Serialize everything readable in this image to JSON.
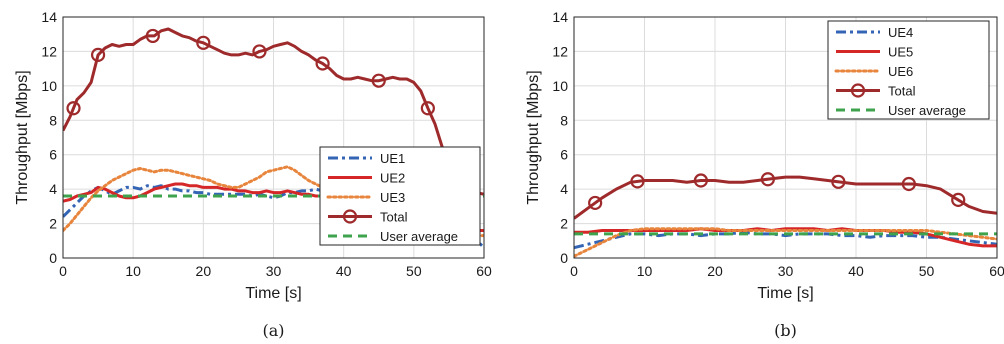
{
  "chart_data": [
    {
      "type": "line",
      "caption": "(a)",
      "xlabel": "Time [s]",
      "ylabel": "Throughput [Mbps]",
      "xlim": [
        0,
        60
      ],
      "ylim": [
        0,
        14
      ],
      "xticks": [
        0,
        10,
        20,
        30,
        40,
        50,
        60
      ],
      "yticks": [
        0,
        2,
        4,
        6,
        8,
        10,
        12,
        14
      ],
      "grid": true,
      "legend_position": "lower-right",
      "series": [
        {
          "name": "UE1",
          "color": "#3465b5",
          "style": "dashdot",
          "marker": "none",
          "x": [
            0,
            1,
            2,
            3,
            4,
            5,
            6,
            7,
            8,
            9,
            10,
            11,
            12,
            13,
            14,
            15,
            16,
            17,
            18,
            19,
            20,
            21,
            22,
            23,
            24,
            25,
            26,
            27,
            28,
            29,
            30,
            31,
            32,
            33,
            34,
            35,
            36,
            37,
            38,
            39,
            40,
            41,
            42,
            43,
            44,
            45,
            46,
            47,
            48,
            49,
            50,
            51,
            52,
            53,
            54,
            55,
            56,
            57,
            58,
            59,
            60
          ],
          "values": [
            2.4,
            2.8,
            3.2,
            3.6,
            3.9,
            4.1,
            3.9,
            3.7,
            3.9,
            4.1,
            4.1,
            4.0,
            4.2,
            4.1,
            4.2,
            4.0,
            4.0,
            3.9,
            3.9,
            3.8,
            3.8,
            3.7,
            3.7,
            3.7,
            3.7,
            3.7,
            3.7,
            3.6,
            3.7,
            3.6,
            3.5,
            3.6,
            3.8,
            3.8,
            3.9,
            3.9,
            4.0,
            3.9,
            3.8,
            3.8,
            3.8,
            3.7,
            3.8,
            3.7,
            3.7,
            3.7,
            3.6,
            3.5,
            3.5,
            3.4,
            3.4,
            3.3,
            3.3,
            3.2,
            3.0,
            2.8,
            2.5,
            2.0,
            1.4,
            1.0,
            0.6
          ]
        },
        {
          "name": "UE2",
          "color": "#d62728",
          "style": "solid",
          "marker": "none",
          "x": [
            0,
            1,
            2,
            3,
            4,
            5,
            6,
            7,
            8,
            9,
            10,
            11,
            12,
            13,
            14,
            15,
            16,
            17,
            18,
            19,
            20,
            21,
            22,
            23,
            24,
            25,
            26,
            27,
            28,
            29,
            30,
            31,
            32,
            33,
            34,
            35,
            36,
            37,
            38,
            39,
            40,
            41,
            42,
            43,
            44,
            45,
            46,
            47,
            48,
            49,
            50,
            51,
            52,
            53,
            54,
            55,
            56,
            57,
            58,
            59,
            60
          ],
          "values": [
            3.3,
            3.4,
            3.6,
            3.7,
            3.8,
            4.1,
            4.0,
            3.8,
            3.6,
            3.5,
            3.5,
            3.6,
            3.8,
            4.0,
            4.1,
            4.2,
            4.3,
            4.3,
            4.2,
            4.2,
            4.1,
            4.1,
            4.1,
            4.0,
            4.0,
            3.9,
            3.9,
            3.8,
            3.8,
            3.9,
            3.8,
            3.8,
            3.9,
            3.8,
            3.7,
            3.7,
            3.6,
            3.6,
            3.6,
            3.7,
            3.7,
            3.8,
            3.8,
            3.9,
            3.9,
            3.9,
            3.8,
            3.7,
            3.6,
            3.5,
            3.3,
            3.1,
            2.7,
            2.3,
            2.0,
            1.8,
            1.7,
            1.6,
            1.6,
            1.6,
            1.6
          ]
        },
        {
          "name": "UE3",
          "color": "#e8853d",
          "style": "dotted",
          "marker": "none",
          "x": [
            0,
            1,
            2,
            3,
            4,
            5,
            6,
            7,
            8,
            9,
            10,
            11,
            12,
            13,
            14,
            15,
            16,
            17,
            18,
            19,
            20,
            21,
            22,
            23,
            24,
            25,
            26,
            27,
            28,
            29,
            30,
            31,
            32,
            33,
            34,
            35,
            36,
            37,
            38,
            39,
            40,
            41,
            42,
            43,
            44,
            45,
            46,
            47,
            48,
            49,
            50,
            51,
            52,
            53,
            54,
            55,
            56,
            57,
            58,
            59,
            60
          ],
          "values": [
            1.6,
            2.0,
            2.5,
            3.0,
            3.5,
            3.9,
            4.2,
            4.5,
            4.7,
            4.9,
            5.1,
            5.2,
            5.1,
            5.0,
            5.1,
            5.1,
            5.0,
            4.9,
            4.8,
            4.7,
            4.6,
            4.5,
            4.3,
            4.2,
            4.1,
            4.1,
            4.3,
            4.5,
            4.7,
            5.0,
            5.1,
            5.2,
            5.3,
            5.1,
            4.8,
            4.5,
            4.3,
            4.1,
            4.0,
            3.9,
            3.9,
            3.8,
            3.8,
            3.8,
            3.7,
            3.6,
            3.5,
            3.4,
            3.2,
            3.0,
            2.8,
            2.5,
            2.2,
            1.9,
            1.7,
            1.5,
            1.4,
            1.3,
            1.3,
            1.3,
            1.3
          ]
        },
        {
          "name": "Total",
          "color": "#9e2a2b",
          "style": "solid",
          "marker": "circle",
          "x": [
            0,
            1,
            2,
            3,
            4,
            5,
            6,
            7,
            8,
            9,
            10,
            11,
            12,
            13,
            14,
            15,
            16,
            17,
            18,
            19,
            20,
            21,
            22,
            23,
            24,
            25,
            26,
            27,
            28,
            29,
            30,
            31,
            32,
            33,
            34,
            35,
            36,
            37,
            38,
            39,
            40,
            41,
            42,
            43,
            44,
            45,
            46,
            47,
            48,
            49,
            50,
            51,
            52,
            53,
            54,
            55,
            56,
            57,
            58,
            59,
            60
          ],
          "values": [
            7.4,
            8.2,
            9.2,
            9.6,
            10.2,
            11.8,
            12.2,
            12.4,
            12.3,
            12.4,
            12.4,
            12.7,
            12.9,
            12.9,
            13.2,
            13.3,
            13.1,
            12.9,
            12.8,
            12.6,
            12.5,
            12.3,
            12.1,
            11.9,
            11.8,
            11.8,
            11.9,
            11.8,
            12.0,
            12.1,
            12.3,
            12.4,
            12.5,
            12.3,
            12.0,
            11.8,
            11.5,
            11.3,
            11.0,
            10.6,
            10.4,
            10.4,
            10.5,
            10.4,
            10.3,
            10.3,
            10.4,
            10.5,
            10.4,
            10.4,
            10.2,
            9.7,
            8.7,
            7.8,
            6.5,
            5.5,
            4.6,
            4.1,
            3.9,
            3.8,
            3.7
          ],
          "marker_x": [
            1.5,
            5,
            12.8,
            20,
            28,
            37,
            45,
            52
          ]
        },
        {
          "name": "User average",
          "color": "#3fa34d",
          "style": "dashed",
          "marker": "none",
          "x": [
            0,
            60
          ],
          "values": [
            3.6,
            3.6
          ]
        }
      ]
    },
    {
      "type": "line",
      "caption": "(b)",
      "xlabel": "Time [s]",
      "ylabel": "Throughput [Mbps]",
      "xlim": [
        0,
        60
      ],
      "ylim": [
        0,
        14
      ],
      "xticks": [
        0,
        10,
        20,
        30,
        40,
        50,
        60
      ],
      "yticks": [
        0,
        2,
        4,
        6,
        8,
        10,
        12,
        14
      ],
      "grid": true,
      "legend_position": "top-right",
      "series": [
        {
          "name": "UE4",
          "color": "#3465b5",
          "style": "dashdot",
          "marker": "none",
          "x": [
            0,
            2,
            4,
            6,
            8,
            10,
            12,
            14,
            16,
            18,
            20,
            22,
            24,
            26,
            28,
            30,
            32,
            34,
            36,
            38,
            40,
            42,
            44,
            46,
            48,
            50,
            52,
            54,
            56,
            58,
            60
          ],
          "values": [
            0.6,
            0.8,
            1.0,
            1.2,
            1.4,
            1.4,
            1.3,
            1.4,
            1.4,
            1.3,
            1.4,
            1.4,
            1.5,
            1.4,
            1.4,
            1.3,
            1.4,
            1.4,
            1.4,
            1.3,
            1.3,
            1.2,
            1.3,
            1.3,
            1.3,
            1.2,
            1.2,
            1.1,
            1.0,
            0.9,
            0.8
          ]
        },
        {
          "name": "UE5",
          "color": "#d62728",
          "style": "solid",
          "marker": "none",
          "x": [
            0,
            2,
            4,
            6,
            8,
            10,
            12,
            14,
            16,
            18,
            20,
            22,
            24,
            26,
            28,
            30,
            32,
            34,
            36,
            38,
            40,
            42,
            44,
            46,
            48,
            50,
            52,
            54,
            56,
            58,
            60
          ],
          "values": [
            1.5,
            1.5,
            1.6,
            1.6,
            1.6,
            1.6,
            1.6,
            1.6,
            1.6,
            1.7,
            1.6,
            1.6,
            1.6,
            1.7,
            1.6,
            1.7,
            1.7,
            1.7,
            1.6,
            1.7,
            1.6,
            1.6,
            1.6,
            1.5,
            1.5,
            1.4,
            1.2,
            1.0,
            0.8,
            0.7,
            0.7
          ]
        },
        {
          "name": "UE6",
          "color": "#e8853d",
          "style": "dotted",
          "marker": "none",
          "x": [
            0,
            2,
            4,
            6,
            8,
            10,
            12,
            14,
            16,
            18,
            20,
            22,
            24,
            26,
            28,
            30,
            32,
            34,
            36,
            38,
            40,
            42,
            44,
            46,
            48,
            50,
            52,
            54,
            56,
            58,
            60
          ],
          "values": [
            0.1,
            0.5,
            0.9,
            1.3,
            1.6,
            1.7,
            1.7,
            1.7,
            1.7,
            1.7,
            1.7,
            1.6,
            1.6,
            1.6,
            1.6,
            1.6,
            1.6,
            1.6,
            1.6,
            1.6,
            1.6,
            1.6,
            1.6,
            1.6,
            1.6,
            1.6,
            1.5,
            1.4,
            1.3,
            1.2,
            1.1
          ]
        },
        {
          "name": "Total",
          "color": "#9e2a2b",
          "style": "solid",
          "marker": "circle",
          "x": [
            0,
            2,
            4,
            6,
            8,
            10,
            12,
            14,
            16,
            18,
            20,
            22,
            24,
            26,
            28,
            30,
            32,
            34,
            36,
            38,
            40,
            42,
            44,
            46,
            48,
            50,
            52,
            54,
            56,
            58,
            60
          ],
          "values": [
            2.3,
            2.9,
            3.5,
            4.0,
            4.4,
            4.5,
            4.5,
            4.5,
            4.4,
            4.5,
            4.5,
            4.4,
            4.4,
            4.5,
            4.6,
            4.7,
            4.7,
            4.6,
            4.5,
            4.4,
            4.3,
            4.3,
            4.3,
            4.3,
            4.3,
            4.2,
            4.0,
            3.5,
            3.0,
            2.7,
            2.6
          ],
          "marker_x": [
            3,
            9,
            18,
            27.5,
            37.5,
            47.5,
            54.5
          ]
        },
        {
          "name": "User average",
          "color": "#3fa34d",
          "style": "dashed",
          "marker": "none",
          "x": [
            0,
            60
          ],
          "values": [
            1.4,
            1.4
          ]
        }
      ]
    }
  ]
}
